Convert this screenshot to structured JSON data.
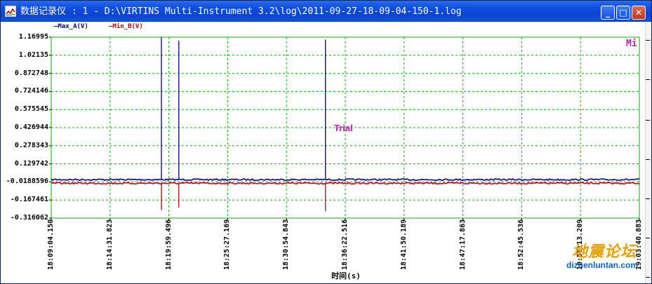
{
  "window": {
    "title": "数据记录仪 : 1 - D:\\VIRTINS Multi-Instrument 3.2\\log\\2011-09-27-18-09-04-150-1.log",
    "buttons": {
      "minimize": "_",
      "maximize": "□",
      "close": "✕"
    }
  },
  "legend": {
    "a": {
      "label": "—Max_A(V)",
      "color": "#00008b"
    },
    "b": {
      "label": "—Min_B(V)",
      "color": "#c00000"
    }
  },
  "plot": {
    "annotation": "Trial",
    "corner_mark": "Mi",
    "bg": "#ffffff",
    "grid_color": "#00b000",
    "border_color": "#00b000"
  },
  "chart_data": {
    "type": "line",
    "xlabel": "时间(s)",
    "ylabel": "",
    "ylim": [
      -0.316062,
      1.16995
    ],
    "y_ticks": [
      "1.16995",
      "1.02135",
      "0.872748",
      "0.724146",
      "0.575545",
      "0.426944",
      "0.278343",
      "0.129742",
      "-0.0188596",
      "-0.167461",
      "-0.316062"
    ],
    "x_ticks": [
      "18:09:04.150",
      "18:14:31.823",
      "18:19:59.496",
      "18:25:27.169",
      "18:30:54.843",
      "18:36:22.516",
      "18:41:50.189",
      "18:47:17.863",
      "18:52:45.536",
      "18:58:13.209",
      "19:03:40.883"
    ],
    "x_start": "18:09:04.150",
    "x_end": "19:03:40.883",
    "grid": true,
    "legend_position": "top-left",
    "series": [
      {
        "name": "Max_A(V)",
        "color": "#00008b",
        "baseline": 0.0,
        "spikes": [
          {
            "time": "18:19:18",
            "value": 1.16995
          },
          {
            "time": "18:20:55",
            "value": 1.14
          },
          {
            "time": "18:34:32",
            "value": 1.15
          }
        ]
      },
      {
        "name": "Min_B(V)",
        "color": "#c00000",
        "baseline": -0.0299,
        "spikes": [
          {
            "time": "18:19:18",
            "value": -0.25
          },
          {
            "time": "18:20:55",
            "value": -0.23
          },
          {
            "time": "18:34:32",
            "value": -0.26
          }
        ]
      }
    ]
  },
  "watermark": {
    "cn": "地震论坛",
    "en": "dizhenluntan.com"
  }
}
